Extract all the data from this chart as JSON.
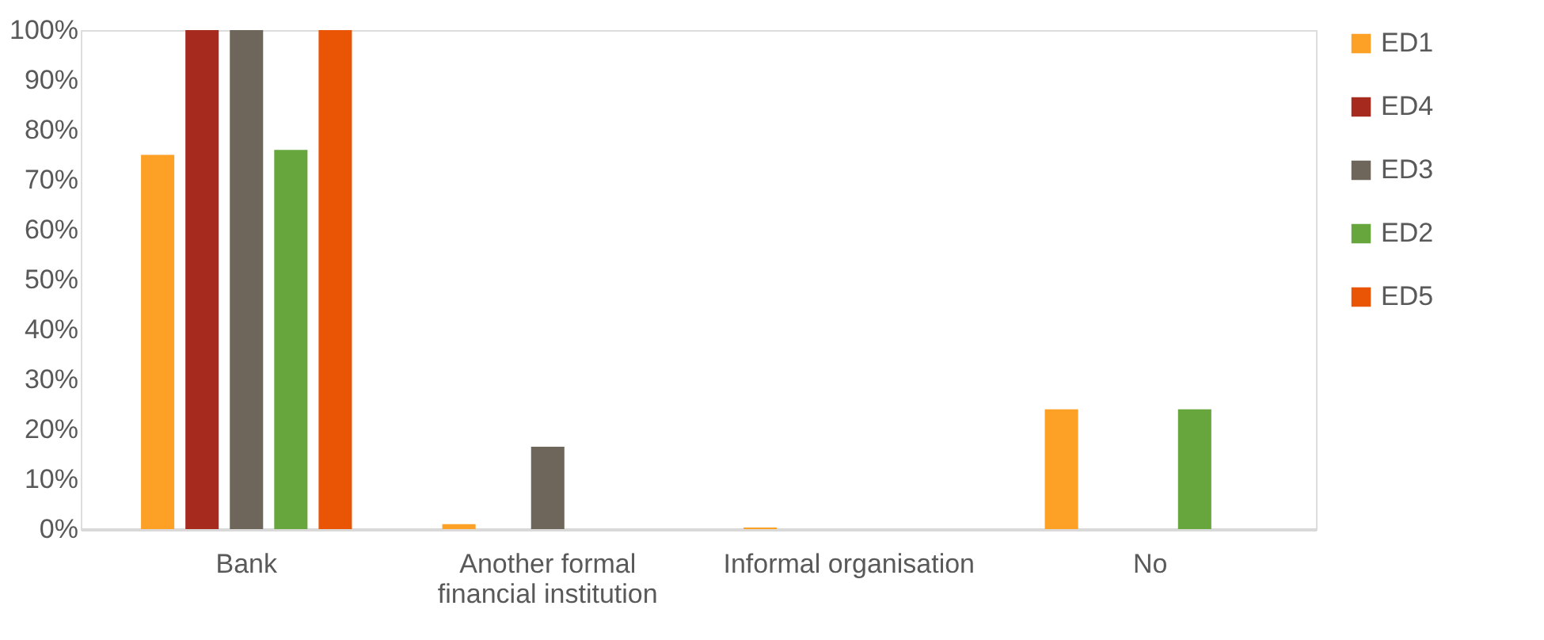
{
  "chart_data": {
    "type": "bar",
    "categories": [
      "Bank",
      "Another formal financial institution",
      "Informal  organisation",
      "No"
    ],
    "series": [
      {
        "name": "ED1",
        "color": "#fda026",
        "values": [
          75,
          1,
          0.3,
          24
        ]
      },
      {
        "name": "ED4",
        "color": "#a72a1f",
        "values": [
          100,
          0,
          0,
          0
        ]
      },
      {
        "name": "ED3",
        "color": "#6e665a",
        "values": [
          100,
          16.5,
          0,
          0
        ]
      },
      {
        "name": "ED2",
        "color": "#66a63c",
        "values": [
          76,
          0,
          0,
          24
        ]
      },
      {
        "name": "ED5",
        "color": "#e95505",
        "values": [
          100,
          0,
          0,
          0
        ]
      }
    ],
    "ylim": [
      0,
      100
    ],
    "yticks": [
      {
        "value": 0,
        "label": "0%"
      },
      {
        "value": 10,
        "label": "10%"
      },
      {
        "value": 20,
        "label": "20%"
      },
      {
        "value": 30,
        "label": "30%"
      },
      {
        "value": 40,
        "label": "40%"
      },
      {
        "value": 50,
        "label": "50%"
      },
      {
        "value": 60,
        "label": "60%"
      },
      {
        "value": 70,
        "label": "70%"
      },
      {
        "value": 80,
        "label": "80%"
      },
      {
        "value": 90,
        "label": "90%"
      },
      {
        "value": 100,
        "label": "100%"
      }
    ],
    "grid": false,
    "legend": "right"
  }
}
